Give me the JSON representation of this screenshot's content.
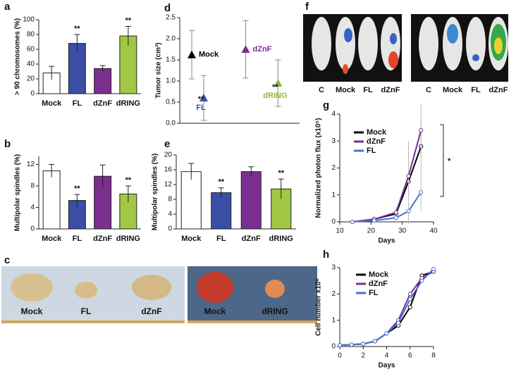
{
  "chart_data": [
    {
      "panel": "a",
      "type": "bar",
      "y_label": "> 90 chromosomes (%)",
      "categories": [
        "Mock",
        "FL",
        "dZnF",
        "dRING"
      ],
      "values": [
        28,
        68,
        34,
        78
      ],
      "errors": [
        9,
        12,
        4,
        13
      ],
      "colors": [
        "#ffffff",
        "#3a4ea6",
        "#7a2f8f",
        "#a0c845"
      ],
      "significance": [
        null,
        "**",
        null,
        "**"
      ],
      "ylim": [
        0,
        100
      ],
      "yticks": [
        0,
        20,
        40,
        60,
        80,
        100
      ]
    },
    {
      "panel": "b",
      "type": "bar",
      "y_label": "Multipolar spindles (%)",
      "categories": [
        "Mock",
        "FL",
        "dZnF",
        "dRING"
      ],
      "values": [
        10.8,
        5.3,
        9.8,
        6.5
      ],
      "errors": [
        1.2,
        1.1,
        2.1,
        1.5
      ],
      "colors": [
        "#ffffff",
        "#3a4ea6",
        "#7a2f8f",
        "#a0c845"
      ],
      "significance": [
        null,
        "**",
        null,
        "**"
      ],
      "ylim": [
        0,
        13.5
      ],
      "yticks": [
        0,
        4,
        8,
        12
      ]
    },
    {
      "panel": "d",
      "type": "errorpoint",
      "y_label": "Tumor size (cm³)",
      "categories": [
        "Mock",
        "FL",
        "dZnF",
        "dRING"
      ],
      "values": [
        1.62,
        0.6,
        1.75,
        0.95
      ],
      "errors": [
        0.57,
        0.53,
        0.68,
        0.55
      ],
      "colors": [
        "#000000",
        "#3a4ea6",
        "#7a2f8f",
        "#8db83a"
      ],
      "significance": [
        null,
        "**",
        null,
        "**"
      ],
      "ylim": [
        0,
        2.5
      ],
      "yticks": [
        {
          "value": 0,
          "label": "0.0"
        },
        {
          "value": 0.5,
          "label": "0.5"
        },
        {
          "value": 1,
          "label": "1.0"
        },
        {
          "value": 1.5,
          "label": "1.5"
        },
        {
          "value": 2,
          "label": "2.0"
        },
        {
          "value": 2.5,
          "label": "2.5"
        }
      ]
    },
    {
      "panel": "e",
      "type": "bar",
      "y_label": "Multipolar spindles (%)",
      "categories": [
        "Mock",
        "FL",
        "dZnF",
        "dRING"
      ],
      "values": [
        15.5,
        9.8,
        15.5,
        10.8
      ],
      "errors": [
        2.2,
        1.3,
        1.3,
        2.7
      ],
      "colors": [
        "#ffffff",
        "#3a4ea6",
        "#7a2f8f",
        "#a0c845"
      ],
      "significance": [
        null,
        "**",
        null,
        "**"
      ],
      "ylim": [
        0,
        20
      ],
      "yticks": [
        0,
        4,
        8,
        12,
        16,
        20
      ]
    },
    {
      "panel": "g",
      "type": "line",
      "y_label": "Normalized photon flux (x10⁵)",
      "x_label": "Days",
      "x": [
        14,
        21,
        28,
        32,
        36
      ],
      "series": [
        {
          "name": "Mock",
          "color": "#000000",
          "values": [
            0,
            0.1,
            0.3,
            1.5,
            2.8
          ],
          "errors": [
            0,
            0.1,
            0.2,
            1.5,
            1.0
          ]
        },
        {
          "name": "dZnF",
          "color": "#7a2f8f",
          "values": [
            0,
            0.1,
            0.35,
            1.7,
            3.4
          ],
          "errors": [
            0,
            0.1,
            0.2,
            1.2,
            1.0
          ]
        },
        {
          "name": "FL",
          "color": "#4a6fd0",
          "values": [
            0,
            0.05,
            0.15,
            0.4,
            1.1
          ],
          "errors": [
            0,
            0.05,
            0.1,
            0.5,
            0.7
          ]
        }
      ],
      "xlim": [
        10,
        40
      ],
      "xticks": [
        10,
        20,
        30,
        40
      ],
      "ylim": [
        0,
        4
      ],
      "yticks": [
        0,
        1,
        2,
        3,
        4
      ],
      "annotation": "*"
    },
    {
      "panel": "h",
      "type": "line",
      "y_label": "Cell number x10⁶",
      "x_label": "Days",
      "x": [
        0,
        1,
        2,
        3,
        4,
        5,
        6,
        7,
        8
      ],
      "series": [
        {
          "name": "Mock",
          "color": "#000000",
          "values": [
            0.05,
            0.07,
            0.1,
            0.2,
            0.5,
            0.8,
            1.5,
            2.7,
            2.85
          ]
        },
        {
          "name": "dZnF",
          "color": "#7a2f8f",
          "values": [
            0.05,
            0.07,
            0.1,
            0.2,
            0.5,
            1.0,
            2.0,
            2.6,
            2.85
          ]
        },
        {
          "name": "FL",
          "color": "#4a6fd0",
          "values": [
            0.05,
            0.07,
            0.1,
            0.2,
            0.5,
            0.9,
            1.8,
            2.5,
            2.95
          ]
        }
      ],
      "xlim": [
        0,
        8
      ],
      "xticks": [
        0,
        2,
        4,
        6,
        8
      ],
      "ylim": [
        0,
        3
      ],
      "yticks": [
        0,
        1,
        2,
        3
      ]
    }
  ],
  "images": [
    {
      "panel": "c",
      "labels": [
        "Mock",
        "FL",
        "dZnF",
        "Mock",
        "dRING"
      ]
    },
    {
      "panel": "f",
      "labels": [
        "C",
        "Mock",
        "FL",
        "dZnF",
        "C",
        "Mock",
        "FL",
        "dZnF"
      ]
    }
  ]
}
